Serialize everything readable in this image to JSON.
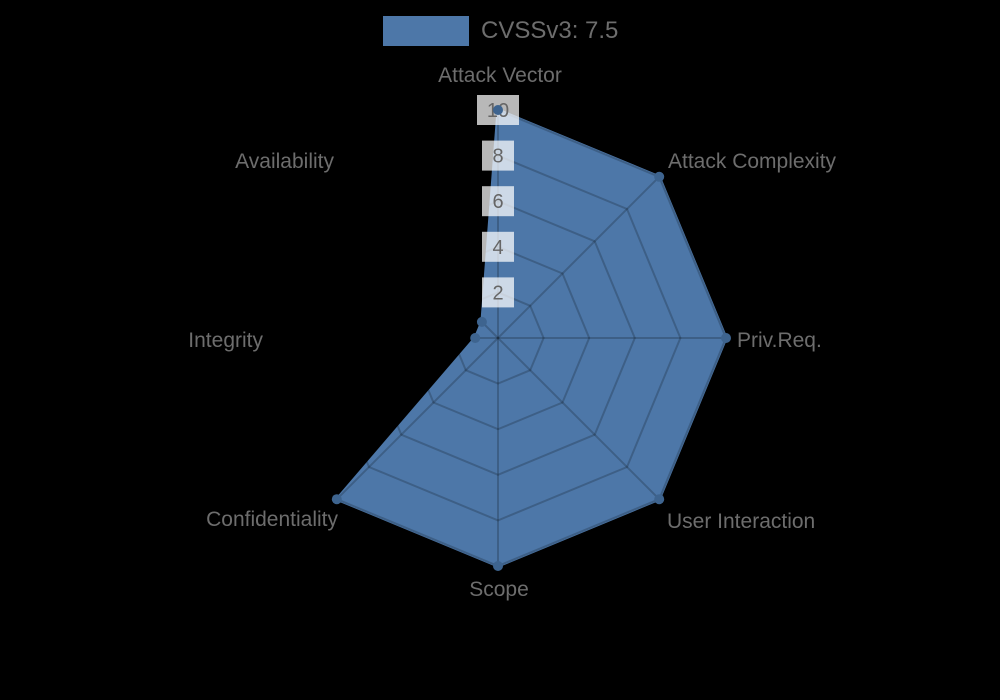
{
  "chart_data": {
    "type": "radar",
    "legend": {
      "label": "CVSSv3: 7.5",
      "position": "top"
    },
    "categories": [
      "Attack Vector",
      "Attack Complexity",
      "Priv.Req.",
      "User Interaction",
      "Scope",
      "Confidentiality",
      "Integrity",
      "Availability"
    ],
    "series": [
      {
        "name": "CVSSv3: 7.5",
        "values": [
          10,
          10,
          10,
          10,
          10,
          10,
          1,
          1
        ]
      }
    ],
    "scale": {
      "min": 0,
      "max": 10,
      "ticks": [
        2,
        4,
        6,
        8,
        10
      ]
    },
    "layout_hints": {
      "grid": "spiderweb, 5 rings, 8 spokes, visible only over filled area",
      "legend_position": "top-center",
      "start_axis": "top",
      "direction": "clockwise"
    },
    "colors": {
      "background": "#000000",
      "fill": "#4d77a8",
      "point": "#3e648f",
      "grid": "rgba(0,0,0,0.20)",
      "tick_backdrop": "rgba(255,255,255,0.72)",
      "tick_text": "#666666",
      "label_text": "#6d6d6d"
    }
  }
}
